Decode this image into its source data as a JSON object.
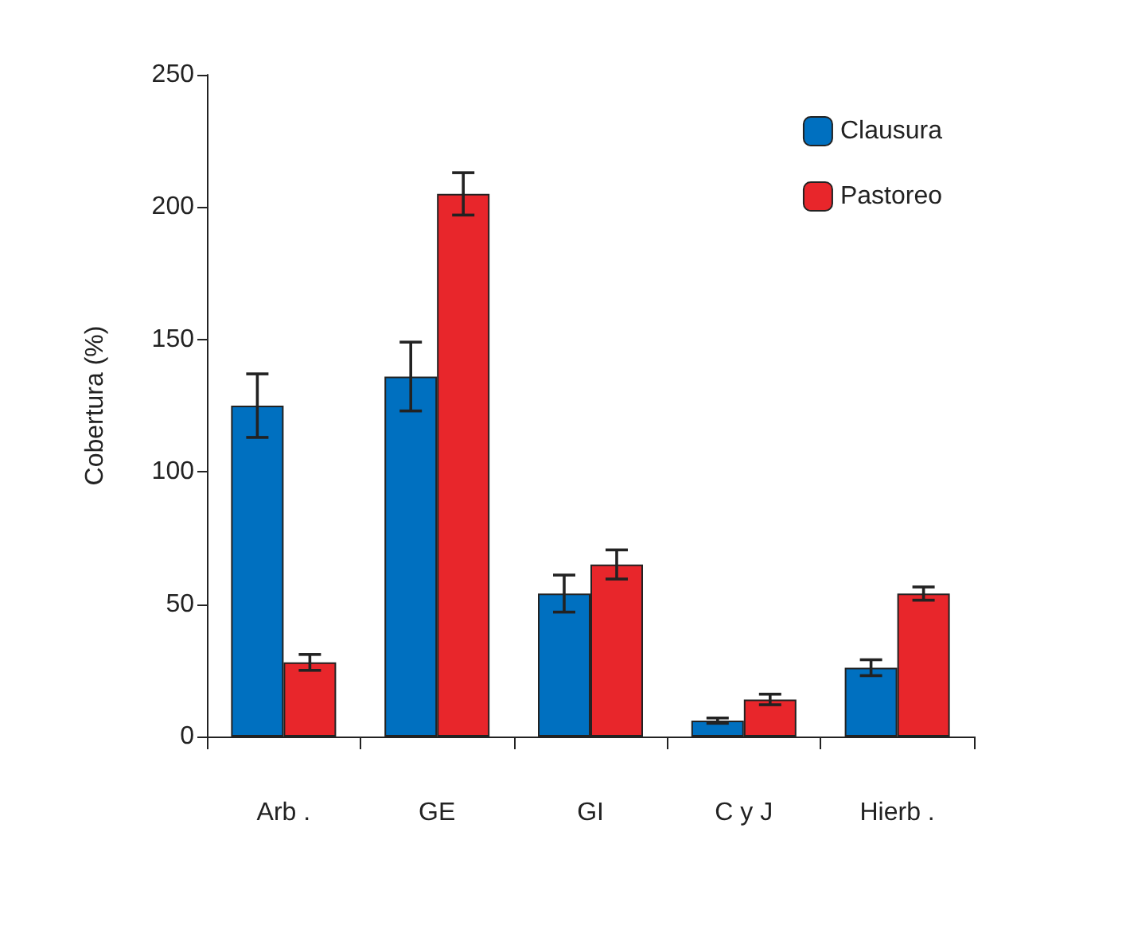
{
  "chart_data": {
    "type": "bar",
    "ylabel": "Cobertura (%)",
    "categories": [
      "Arb .",
      "GE",
      "GI",
      "C y J",
      "Hierb ."
    ],
    "series": [
      {
        "name": "Clausura",
        "color": "#0070c0",
        "values": [
          125,
          136,
          54,
          6,
          26
        ],
        "errors": [
          12,
          13,
          7,
          1,
          3
        ]
      },
      {
        "name": "Pastoreo",
        "color": "#e8262b",
        "values": [
          28,
          205,
          65,
          14,
          54
        ],
        "errors": [
          3,
          8,
          5.5,
          2,
          2.5
        ]
      }
    ],
    "ylim": [
      0,
      250
    ],
    "yticks": [
      0,
      50,
      100,
      150,
      200,
      250
    ],
    "grid": false,
    "legend": "top right"
  }
}
